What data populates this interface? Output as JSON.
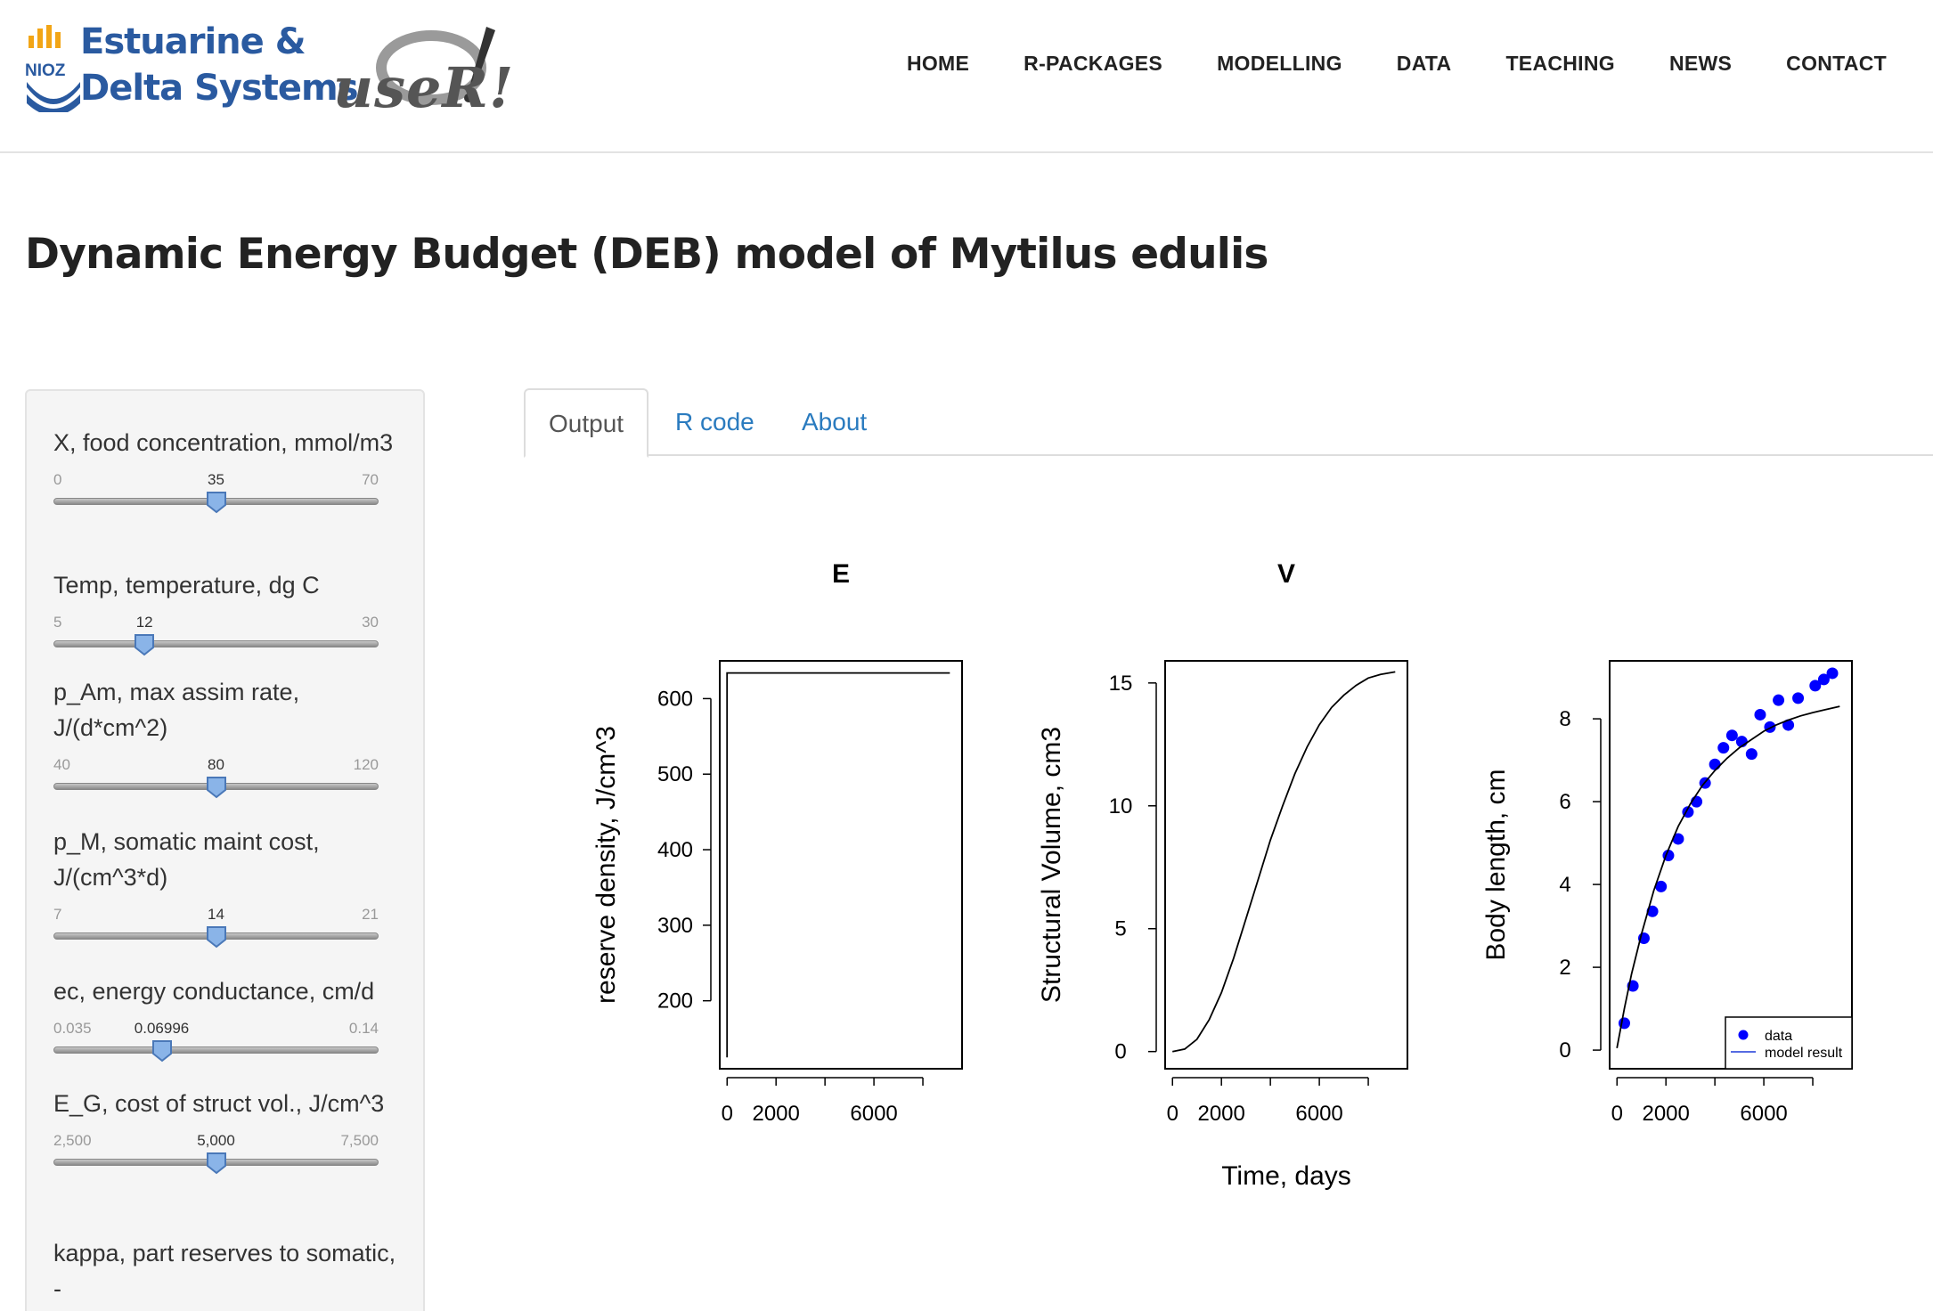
{
  "header": {
    "logo_nioz_line1": "Estuarine &",
    "logo_nioz_line2": "Delta Systems",
    "logo_nioz_mark": "NIOZ",
    "logo_user_word": "useR!",
    "nav": [
      "HOME",
      "R-PACKAGES",
      "MODELLING",
      "DATA",
      "TEACHING",
      "NEWS",
      "CONTACT"
    ]
  },
  "page": {
    "title": "Dynamic Energy Budget (DEB) model of Mytilus edulis"
  },
  "sidebar": {
    "params": [
      {
        "label": "X, food concentration, mmol/m3",
        "min": "0",
        "max": "70",
        "value": "35",
        "fraction": 0.5
      },
      {
        "label": "Temp, temperature, dg C",
        "min": "5",
        "max": "30",
        "value": "12",
        "fraction": 0.28
      },
      {
        "label": "p_Am, max assim rate, J/(d*cm^2)",
        "min": "40",
        "max": "120",
        "value": "80",
        "fraction": 0.5
      },
      {
        "label": "p_M, somatic maint cost, J/(cm^3*d)",
        "min": "7",
        "max": "21",
        "value": "14",
        "fraction": 0.5
      },
      {
        "label": "ec, energy conductance, cm/d",
        "min": "0.035",
        "max": "0.14",
        "value": "0.06996",
        "fraction": 0.333
      },
      {
        "label": "E_G, cost of struct vol., J/cm^3",
        "min": "2,500",
        "max": "7,500",
        "value": "5,000",
        "fraction": 0.5
      },
      {
        "label": "kappa, part reserves to somatic, -",
        "min": "",
        "max": "",
        "value": "",
        "fraction": null
      }
    ]
  },
  "tabs": [
    "Output",
    "R code",
    "About"
  ],
  "active_tab": "Output",
  "colors": {
    "link": "#2a7bbf",
    "data_points": "#0000ff",
    "nioz_blue": "#2a5aa0",
    "nioz_orange": "#f2a516"
  },
  "chart_data": [
    {
      "type": "line",
      "title": "E",
      "xlabel": "",
      "ylabel": "reserve density, J/cm^3",
      "xlim": [
        -300,
        9600
      ],
      "ylim": [
        110,
        650
      ],
      "x_ticks": [
        0,
        2000,
        6000
      ],
      "y_ticks": [
        200,
        300,
        400,
        500,
        600
      ],
      "series": [
        {
          "x": [
            0,
            0,
            100,
            9100
          ],
          "y": [
            125,
            634,
            634,
            634
          ]
        }
      ]
    },
    {
      "type": "line",
      "title": "V",
      "xlabel": "Time, days",
      "ylabel": "Structural Volume, cm3",
      "xlim": [
        -300,
        9600
      ],
      "ylim": [
        -0.7,
        15.9
      ],
      "x_ticks": [
        0,
        2000,
        6000
      ],
      "y_ticks": [
        0,
        5,
        10,
        15
      ],
      "series": [
        {
          "x": [
            0,
            500,
            1000,
            1500,
            2000,
            2500,
            3000,
            3500,
            4000,
            4500,
            5000,
            5500,
            6000,
            6500,
            7000,
            7500,
            8000,
            8500,
            9100
          ],
          "y": [
            0,
            0.1,
            0.5,
            1.3,
            2.4,
            3.8,
            5.4,
            7.0,
            8.6,
            10.0,
            11.3,
            12.4,
            13.3,
            14.0,
            14.5,
            14.9,
            15.2,
            15.35,
            15.45
          ]
        }
      ]
    },
    {
      "type": "scatter",
      "title": "",
      "xlabel": "",
      "ylabel": "Body length, cm",
      "xlim": [
        -300,
        9600
      ],
      "ylim": [
        -0.45,
        9.4
      ],
      "x_ticks": [
        0,
        2000,
        6000
      ],
      "y_ticks": [
        0,
        2,
        4,
        6,
        8
      ],
      "legend_position": "bottom-right",
      "series": [
        {
          "name": "data",
          "kind": "points",
          "x": [
            300,
            650,
            1100,
            1450,
            1800,
            2100,
            2500,
            2900,
            3250,
            3600,
            4000,
            4350,
            4700,
            5100,
            5500,
            5850,
            6250,
            6600,
            7000,
            7400,
            8100,
            8450,
            8800
          ],
          "y": [
            0.65,
            1.55,
            2.7,
            3.35,
            3.95,
            4.7,
            5.1,
            5.75,
            6.0,
            6.45,
            6.9,
            7.3,
            7.6,
            7.45,
            7.15,
            8.1,
            7.8,
            8.45,
            7.85,
            8.5,
            8.8,
            8.95,
            9.1
          ]
        },
        {
          "name": "model result",
          "kind": "line",
          "x": [
            0,
            300,
            600,
            1000,
            1500,
            2000,
            2500,
            3000,
            3500,
            4000,
            4500,
            5000,
            5500,
            6000,
            6500,
            7000,
            7500,
            8000,
            8500,
            9100
          ],
          "y": [
            0.05,
            1.0,
            1.85,
            2.8,
            3.85,
            4.7,
            5.4,
            5.95,
            6.4,
            6.75,
            7.05,
            7.3,
            7.5,
            7.7,
            7.85,
            7.97,
            8.07,
            8.15,
            8.22,
            8.3
          ]
        }
      ]
    }
  ]
}
